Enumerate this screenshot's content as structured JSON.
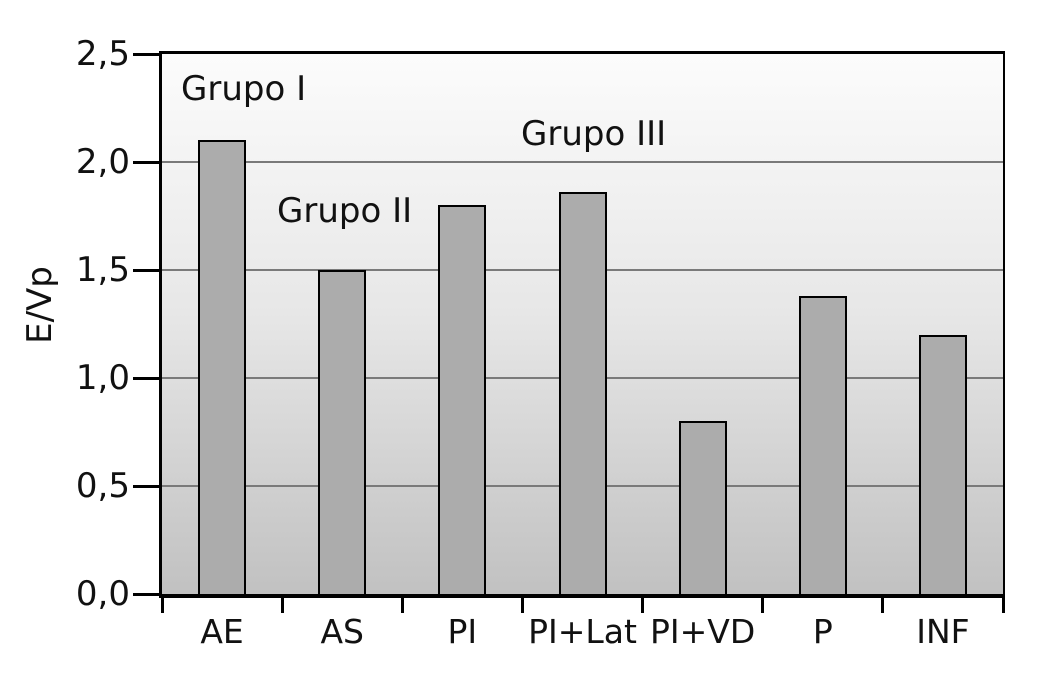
{
  "chart_data": {
    "type": "bar",
    "title": "",
    "xlabel": "",
    "ylabel": "E/Vp",
    "categories": [
      "AE",
      "AS",
      "PI",
      "PI+Lat",
      "PI+VD",
      "P",
      "INF"
    ],
    "values": [
      2.1,
      1.5,
      1.8,
      1.86,
      0.8,
      1.38,
      1.2
    ],
    "ylim": [
      0,
      2.5
    ],
    "ytick_step": 0.5,
    "ytick_labels": [
      "0,0",
      "0,5",
      "1,0",
      "1,5",
      "2,0",
      "2,5"
    ],
    "decimal_separator": ",",
    "grid": "horizontal",
    "legend": "none",
    "annotations": [
      {
        "label": "Grupo I"
      },
      {
        "label": "Grupo II"
      },
      {
        "label": "Grupo III"
      }
    ],
    "colors": {
      "bar_fill": "#acacac",
      "bar_border": "#000000",
      "gridline": "#7a7a7a",
      "axis": "#000000",
      "plot_bg_top": "#fcfcfc",
      "plot_bg_bottom": "#c1c1c1",
      "text": "#111111",
      "page_bg": "#ffffff"
    }
  }
}
